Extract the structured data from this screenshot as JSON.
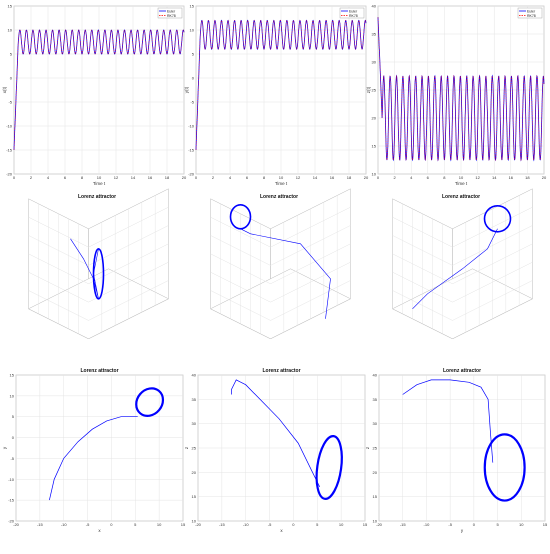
{
  "charts": {
    "ts": [
      {
        "ylabel": "x(t)",
        "xlabel": "Time t",
        "ylim": [
          -20,
          15
        ],
        "yticks": [
          "-20",
          "-15",
          "-10",
          "-5",
          "0",
          "5",
          "10",
          "15"
        ],
        "mean": 7.5,
        "amp": 2.5
      },
      {
        "ylabel": "y(t)",
        "xlabel": "Time t",
        "ylim": [
          -20,
          15
        ],
        "yticks": [
          "-20",
          "-15",
          "-10",
          "-5",
          "0",
          "5",
          "10",
          "15"
        ],
        "mean": 9.0,
        "amp": 3.0
      },
      {
        "ylabel": "z(t)",
        "xlabel": "Time t",
        "ylim": [
          10,
          40
        ],
        "yticks": [
          "10",
          "15",
          "20",
          "25",
          "30",
          "35",
          "40"
        ],
        "mean": 20.0,
        "amp": 7.5
      }
    ],
    "xticks": [
      "0",
      "2",
      "4",
      "6",
      "8",
      "10",
      "12",
      "14",
      "16",
      "18",
      "20"
    ],
    "legend": [
      "Euler",
      "RK78"
    ],
    "attractor_title": "Lorenz attractor",
    "phase": [
      {
        "xlabel": "x",
        "ylabel": "y",
        "xlim": [
          -20,
          15
        ],
        "ylim": [
          -20,
          15
        ],
        "xticks": [
          "-20",
          "-15",
          "-10",
          "-5",
          "0",
          "5",
          "10",
          "15"
        ],
        "yticks": [
          "-20",
          "-15",
          "-10",
          "-5",
          "0",
          "5",
          "10",
          "15"
        ]
      },
      {
        "xlabel": "x",
        "ylabel": "z",
        "xlim": [
          -20,
          15
        ],
        "ylim": [
          10,
          40
        ],
        "xticks": [
          "-20",
          "-15",
          "-10",
          "-5",
          "0",
          "5",
          "10",
          "15"
        ],
        "yticks": [
          "10",
          "15",
          "20",
          "25",
          "30",
          "35",
          "40"
        ]
      },
      {
        "xlabel": "y",
        "ylabel": "z",
        "xlim": [
          -20,
          15
        ],
        "ylim": [
          10,
          40
        ],
        "xticks": [
          "-20",
          "-15",
          "-10",
          "-5",
          "0",
          "5",
          "10",
          "15"
        ],
        "yticks": [
          "10",
          "15",
          "20",
          "25",
          "30",
          "35",
          "40"
        ]
      }
    ]
  },
  "chart_data": [
    {
      "type": "line",
      "xlabel": "Time t",
      "ylabel": "x(t)",
      "xlim": [
        0,
        20
      ],
      "ylim": [
        -20,
        15
      ],
      "series": [
        {
          "name": "Euler",
          "color": "#0000ff"
        },
        {
          "name": "RK78",
          "color": "#ff0000",
          "dashed": true
        }
      ],
      "notes": "starts near -15, rises to oscillation of about 5 to 10 with ~26 cycles"
    },
    {
      "type": "line",
      "xlabel": "Time t",
      "ylabel": "y(t)",
      "xlim": [
        0,
        20
      ],
      "ylim": [
        -20,
        15
      ],
      "series": [
        {
          "name": "Euler",
          "color": "#0000ff"
        },
        {
          "name": "RK78",
          "color": "#ff0000",
          "dashed": true
        }
      ],
      "notes": "starts near -15, rises to oscillation of about 6 to 12"
    },
    {
      "type": "line",
      "xlabel": "Time t",
      "ylabel": "z(t)",
      "xlim": [
        0,
        20
      ],
      "ylim": [
        10,
        40
      ],
      "series": [
        {
          "name": "Euler",
          "color": "#0000ff"
        },
        {
          "name": "RK78",
          "color": "#ff0000",
          "dashed": true
        }
      ],
      "notes": "starts near 38, oscillates between about 13 and 28"
    },
    {
      "type": "line",
      "title": "Lorenz attractor",
      "xlabel": "x",
      "ylabel": "y",
      "x": [
        -13,
        -10,
        -5,
        0,
        4,
        6,
        7,
        10
      ],
      "y": [
        -15,
        -5,
        2,
        5,
        5,
        6,
        7,
        10
      ]
    },
    {
      "type": "line",
      "title": "Lorenz attractor",
      "xlabel": "x",
      "ylabel": "z",
      "x": [
        -13,
        -10,
        -5,
        0,
        5,
        6,
        10
      ],
      "y": [
        37,
        39,
        34,
        27,
        17,
        15,
        25
      ]
    },
    {
      "type": "line",
      "title": "Lorenz attractor",
      "xlabel": "y",
      "ylabel": "z",
      "x": [
        -15,
        -10,
        -5,
        0,
        5,
        5,
        9
      ],
      "y": [
        36,
        39,
        39,
        38,
        33,
        22,
        20
      ]
    }
  ],
  "colors": {
    "euler": "#0000ff",
    "rk": "#ff0000",
    "mix": "#8a2bbf"
  }
}
